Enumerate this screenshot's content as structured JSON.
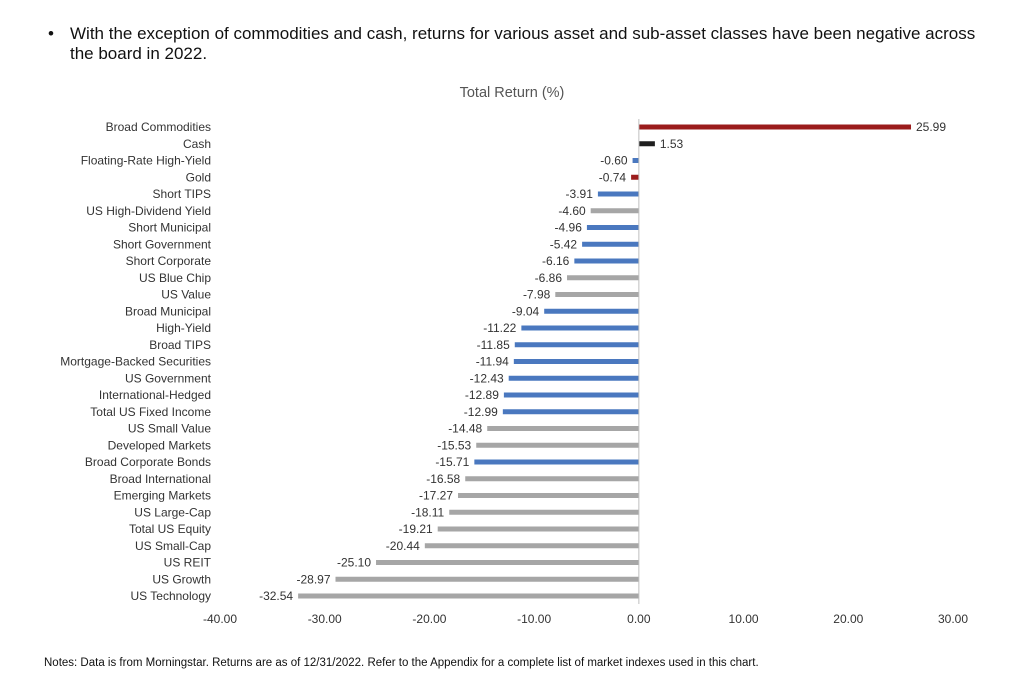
{
  "bullet": {
    "symbol": "•",
    "text": "With the exception of commodities and cash, returns for various asset and sub-asset classes have been negative across the board in 2022."
  },
  "notes": "Notes: Data is from Morningstar. Returns are as of 12/31/2022. Refer to the Appendix for a complete list of market indexes used in this chart.",
  "chart_data": {
    "type": "bar",
    "orientation": "horizontal",
    "title": "Total Return (%)",
    "xlabel": "",
    "ylabel": "",
    "xlim": [
      -40,
      30
    ],
    "xticks": [
      -40,
      -30,
      -20,
      -10,
      0,
      10,
      20,
      30
    ],
    "tick_labels": [
      "-40.00",
      "-30.00",
      "-20.00",
      "-10.00",
      "0.00",
      "10.00",
      "20.00",
      "30.00"
    ],
    "grid": false,
    "legend": "none",
    "colors": {
      "commodity": "#9b1c1c",
      "cash": "#1f1f1f",
      "fixed_income": "#4a78bf",
      "equity": "#a6a6a6"
    },
    "categories": [
      "Broad Commodities",
      "Cash",
      "Floating-Rate High-Yield",
      "Gold",
      "Short TIPS",
      "US High-Dividend Yield",
      "Short Municipal",
      "Short Government",
      "Short Corporate",
      "US Blue Chip",
      "US Value",
      "Broad Municipal",
      "High-Yield",
      "Broad TIPS",
      "Mortgage-Backed Securities",
      "US Government",
      "International-Hedged",
      "Total US Fixed Income",
      "US Small Value",
      "Developed Markets",
      "Broad Corporate Bonds",
      "Broad International",
      "Emerging Markets",
      "US Large-Cap",
      "Total US Equity",
      "US Small-Cap",
      "US REIT",
      "US Growth",
      "US Technology"
    ],
    "values": [
      25.99,
      1.53,
      -0.6,
      -0.74,
      -3.91,
      -4.6,
      -4.96,
      -5.42,
      -6.16,
      -6.86,
      -7.98,
      -9.04,
      -11.22,
      -11.85,
      -11.94,
      -12.43,
      -12.89,
      -12.99,
      -14.48,
      -15.53,
      -15.71,
      -16.58,
      -17.27,
      -18.11,
      -19.21,
      -20.44,
      -25.1,
      -28.97,
      -32.54
    ],
    "labels": [
      "25.99",
      "1.53",
      "-0.60",
      "-0.74",
      "-3.91",
      "-4.60",
      "-4.96",
      "-5.42",
      "-6.16",
      "-6.86",
      "-7.98",
      "-9.04",
      "-11.22",
      "-11.85",
      "-11.94",
      "-12.43",
      "-12.89",
      "-12.99",
      "-14.48",
      "-15.53",
      "-15.71",
      "-16.58",
      "-17.27",
      "-18.11",
      "-19.21",
      "-20.44",
      "-25.10",
      "-28.97",
      "-32.54"
    ],
    "groups": [
      "commodity",
      "cash",
      "fixed_income",
      "commodity",
      "fixed_income",
      "equity",
      "fixed_income",
      "fixed_income",
      "fixed_income",
      "equity",
      "equity",
      "fixed_income",
      "fixed_income",
      "fixed_income",
      "fixed_income",
      "fixed_income",
      "fixed_income",
      "fixed_income",
      "equity",
      "equity",
      "fixed_income",
      "equity",
      "equity",
      "equity",
      "equity",
      "equity",
      "equity",
      "equity",
      "equity"
    ]
  }
}
